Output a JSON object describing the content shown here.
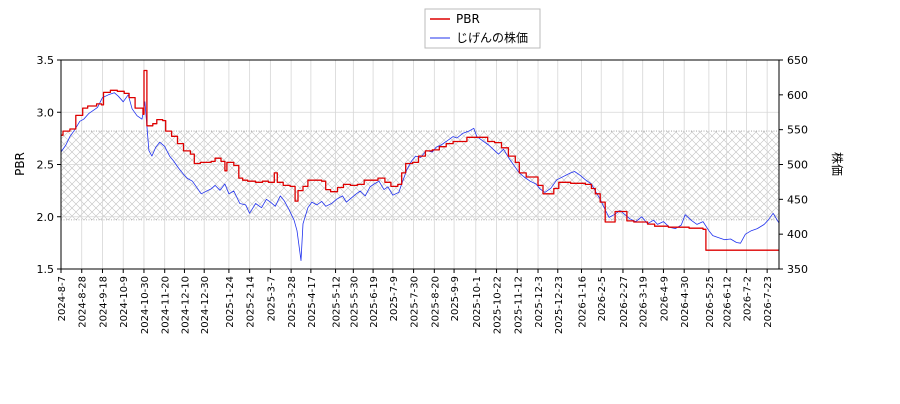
{
  "chart_data": {
    "type": "line",
    "legend_position": "top-center",
    "series": [
      {
        "name": "PBR",
        "axis": "left",
        "color": "#dd0000",
        "points": [
          [
            "2024-08-07",
            2.78
          ],
          [
            "2024-08-09",
            2.82
          ],
          [
            "2024-08-13",
            2.82
          ],
          [
            "2024-08-16",
            2.84
          ],
          [
            "2024-08-20",
            2.84
          ],
          [
            "2024-08-22",
            2.97
          ],
          [
            "2024-08-27",
            2.97
          ],
          [
            "2024-08-29",
            3.04
          ],
          [
            "2024-09-03",
            3.06
          ],
          [
            "2024-09-09",
            3.06
          ],
          [
            "2024-09-12",
            3.08
          ],
          [
            "2024-09-17",
            3.07
          ],
          [
            "2024-09-19",
            3.19
          ],
          [
            "2024-09-26",
            3.21
          ],
          [
            "2024-10-03",
            3.2
          ],
          [
            "2024-10-10",
            3.18
          ],
          [
            "2024-10-15",
            3.14
          ],
          [
            "2024-10-21",
            3.04
          ],
          [
            "2024-10-25",
            3.04
          ],
          [
            "2024-10-29",
            2.98
          ],
          [
            "2024-10-30",
            3.4
          ],
          [
            "2024-11-01",
            3.4
          ],
          [
            "2024-11-02",
            2.87
          ],
          [
            "2024-11-08",
            2.89
          ],
          [
            "2024-11-12",
            2.93
          ],
          [
            "2024-11-18",
            2.92
          ],
          [
            "2024-11-21",
            2.82
          ],
          [
            "2024-11-27",
            2.77
          ],
          [
            "2024-12-03",
            2.7
          ],
          [
            "2024-12-09",
            2.63
          ],
          [
            "2024-12-16",
            2.6
          ],
          [
            "2024-12-20",
            2.51
          ],
          [
            "2024-12-26",
            2.52
          ],
          [
            "2025-01-06",
            2.53
          ],
          [
            "2025-01-10",
            2.56
          ],
          [
            "2025-01-16",
            2.53
          ],
          [
            "2025-01-20",
            2.44
          ],
          [
            "2025-01-22",
            2.52
          ],
          [
            "2025-01-29",
            2.49
          ],
          [
            "2025-02-03",
            2.37
          ],
          [
            "2025-02-07",
            2.35
          ],
          [
            "2025-02-12",
            2.34
          ],
          [
            "2025-02-20",
            2.33
          ],
          [
            "2025-02-27",
            2.34
          ],
          [
            "2025-03-05",
            2.33
          ],
          [
            "2025-03-11",
            2.42
          ],
          [
            "2025-03-14",
            2.33
          ],
          [
            "2025-03-20",
            2.3
          ],
          [
            "2025-03-27",
            2.29
          ],
          [
            "2025-04-01",
            2.15
          ],
          [
            "2025-04-04",
            2.25
          ],
          [
            "2025-04-09",
            2.29
          ],
          [
            "2025-04-14",
            2.35
          ],
          [
            "2025-04-21",
            2.35
          ],
          [
            "2025-04-28",
            2.34
          ],
          [
            "2025-05-02",
            2.26
          ],
          [
            "2025-05-07",
            2.24
          ],
          [
            "2025-05-14",
            2.28
          ],
          [
            "2025-05-20",
            2.31
          ],
          [
            "2025-05-27",
            2.3
          ],
          [
            "2025-06-03",
            2.31
          ],
          [
            "2025-06-10",
            2.35
          ],
          [
            "2025-06-17",
            2.35
          ],
          [
            "2025-06-24",
            2.37
          ],
          [
            "2025-07-01",
            2.33
          ],
          [
            "2025-07-07",
            2.29
          ],
          [
            "2025-07-14",
            2.31
          ],
          [
            "2025-07-18",
            2.42
          ],
          [
            "2025-07-22",
            2.51
          ],
          [
            "2025-07-29",
            2.52
          ],
          [
            "2025-08-04",
            2.58
          ],
          [
            "2025-08-11",
            2.63
          ],
          [
            "2025-08-18",
            2.64
          ],
          [
            "2025-08-25",
            2.67
          ],
          [
            "2025-09-01",
            2.7
          ],
          [
            "2025-09-08",
            2.72
          ],
          [
            "2025-09-15",
            2.72
          ],
          [
            "2025-09-22",
            2.76
          ],
          [
            "2025-09-29",
            2.76
          ],
          [
            "2025-10-06",
            2.76
          ],
          [
            "2025-10-13",
            2.72
          ],
          [
            "2025-10-20",
            2.71
          ],
          [
            "2025-10-27",
            2.66
          ],
          [
            "2025-11-03",
            2.58
          ],
          [
            "2025-11-10",
            2.52
          ],
          [
            "2025-11-14",
            2.42
          ],
          [
            "2025-11-21",
            2.38
          ],
          [
            "2025-11-28",
            2.38
          ],
          [
            "2025-12-03",
            2.3
          ],
          [
            "2025-12-08",
            2.22
          ],
          [
            "2025-12-15",
            2.22
          ],
          [
            "2025-12-19",
            2.27
          ],
          [
            "2025-12-24",
            2.33
          ],
          [
            "2026-01-05",
            2.32
          ],
          [
            "2026-01-12",
            2.32
          ],
          [
            "2026-01-20",
            2.31
          ],
          [
            "2026-01-26",
            2.27
          ],
          [
            "2026-01-30",
            2.22
          ],
          [
            "2026-02-04",
            2.14
          ],
          [
            "2026-02-09",
            1.95
          ],
          [
            "2026-02-16",
            1.95
          ],
          [
            "2026-02-19",
            2.05
          ],
          [
            "2026-02-25",
            2.05
          ],
          [
            "2026-03-03",
            1.96
          ],
          [
            "2026-03-10",
            1.95
          ],
          [
            "2026-03-17",
            1.95
          ],
          [
            "2026-03-24",
            1.93
          ],
          [
            "2026-03-31",
            1.91
          ],
          [
            "2026-04-07",
            1.91
          ],
          [
            "2026-04-14",
            1.9
          ],
          [
            "2026-04-21",
            1.9
          ],
          [
            "2026-04-28",
            1.9
          ],
          [
            "2026-05-05",
            1.89
          ],
          [
            "2026-05-12",
            1.89
          ],
          [
            "2026-05-19",
            1.88
          ],
          [
            "2026-05-22",
            1.68
          ],
          [
            "2026-06-01",
            1.68
          ],
          [
            "2026-06-15",
            1.68
          ],
          [
            "2026-07-01",
            1.68
          ],
          [
            "2026-07-15",
            1.68
          ],
          [
            "2026-08-04",
            1.68
          ]
        ]
      },
      {
        "name": "じげんの株価",
        "axis": "right",
        "color": "#2233ee",
        "points": [
          [
            "2024-08-07",
            518
          ],
          [
            "2024-08-12",
            528
          ],
          [
            "2024-08-16",
            540
          ],
          [
            "2024-08-21",
            550
          ],
          [
            "2024-08-26",
            562
          ],
          [
            "2024-08-30",
            565
          ],
          [
            "2024-09-04",
            573
          ],
          [
            "2024-09-09",
            578
          ],
          [
            "2024-09-13",
            582
          ],
          [
            "2024-09-18",
            596
          ],
          [
            "2024-09-24",
            600
          ],
          [
            "2024-09-30",
            603
          ],
          [
            "2024-10-04",
            598
          ],
          [
            "2024-10-09",
            590
          ],
          [
            "2024-10-14",
            600
          ],
          [
            "2024-10-18",
            580
          ],
          [
            "2024-10-23",
            570
          ],
          [
            "2024-10-28",
            565
          ],
          [
            "2024-10-31",
            590
          ],
          [
            "2024-11-04",
            520
          ],
          [
            "2024-11-07",
            512
          ],
          [
            "2024-11-11",
            525
          ],
          [
            "2024-11-15",
            532
          ],
          [
            "2024-11-20",
            526
          ],
          [
            "2024-11-25",
            512
          ],
          [
            "2024-11-29",
            505
          ],
          [
            "2024-12-04",
            495
          ],
          [
            "2024-12-09",
            486
          ],
          [
            "2024-12-13",
            480
          ],
          [
            "2024-12-18",
            476
          ],
          [
            "2024-12-23",
            466
          ],
          [
            "2024-12-27",
            458
          ],
          [
            "2025-01-06",
            465
          ],
          [
            "2025-01-10",
            470
          ],
          [
            "2025-01-15",
            463
          ],
          [
            "2025-01-20",
            472
          ],
          [
            "2025-01-24",
            458
          ],
          [
            "2025-01-29",
            462
          ],
          [
            "2025-02-04",
            444
          ],
          [
            "2025-02-10",
            442
          ],
          [
            "2025-02-14",
            430
          ],
          [
            "2025-02-20",
            444
          ],
          [
            "2025-02-26",
            438
          ],
          [
            "2025-03-03",
            450
          ],
          [
            "2025-03-07",
            446
          ],
          [
            "2025-03-12",
            440
          ],
          [
            "2025-03-17",
            455
          ],
          [
            "2025-03-21",
            448
          ],
          [
            "2025-03-26",
            435
          ],
          [
            "2025-03-31",
            420
          ],
          [
            "2025-04-03",
            405
          ],
          [
            "2025-04-07",
            362
          ],
          [
            "2025-04-09",
            415
          ],
          [
            "2025-04-14",
            438
          ],
          [
            "2025-04-18",
            446
          ],
          [
            "2025-04-23",
            442
          ],
          [
            "2025-04-28",
            447
          ],
          [
            "2025-05-02",
            440
          ],
          [
            "2025-05-08",
            444
          ],
          [
            "2025-05-13",
            450
          ],
          [
            "2025-05-19",
            455
          ],
          [
            "2025-05-23",
            446
          ],
          [
            "2025-05-28",
            452
          ],
          [
            "2025-06-02",
            458
          ],
          [
            "2025-06-06",
            462
          ],
          [
            "2025-06-11",
            455
          ],
          [
            "2025-06-16",
            468
          ],
          [
            "2025-06-20",
            472
          ],
          [
            "2025-06-25",
            476
          ],
          [
            "2025-06-30",
            464
          ],
          [
            "2025-07-04",
            468
          ],
          [
            "2025-07-09",
            456
          ],
          [
            "2025-07-15",
            460
          ],
          [
            "2025-07-18",
            472
          ],
          [
            "2025-07-23",
            492
          ],
          [
            "2025-07-28",
            505
          ],
          [
            "2025-08-01",
            512
          ],
          [
            "2025-08-06",
            510
          ],
          [
            "2025-08-12",
            520
          ],
          [
            "2025-08-18",
            518
          ],
          [
            "2025-08-22",
            525
          ],
          [
            "2025-08-27",
            528
          ],
          [
            "2025-09-02",
            534
          ],
          [
            "2025-09-08",
            540
          ],
          [
            "2025-09-12",
            538
          ],
          [
            "2025-09-18",
            545
          ],
          [
            "2025-09-24",
            548
          ],
          [
            "2025-09-29",
            552
          ],
          [
            "2025-10-02",
            540
          ],
          [
            "2025-10-07",
            535
          ],
          [
            "2025-10-14",
            528
          ],
          [
            "2025-10-20",
            520
          ],
          [
            "2025-10-24",
            515
          ],
          [
            "2025-10-29",
            522
          ],
          [
            "2025-11-04",
            508
          ],
          [
            "2025-11-10",
            496
          ],
          [
            "2025-11-14",
            488
          ],
          [
            "2025-11-19",
            482
          ],
          [
            "2025-11-25",
            476
          ],
          [
            "2025-12-01",
            472
          ],
          [
            "2025-12-05",
            465
          ],
          [
            "2025-12-10",
            460
          ],
          [
            "2025-12-16",
            466
          ],
          [
            "2025-12-22",
            478
          ],
          [
            "2026-01-05",
            488
          ],
          [
            "2026-01-09",
            490
          ],
          [
            "2026-01-15",
            484
          ],
          [
            "2026-01-20",
            478
          ],
          [
            "2026-01-26",
            472
          ],
          [
            "2026-01-30",
            462
          ],
          [
            "2026-02-04",
            450
          ],
          [
            "2026-02-09",
            435
          ],
          [
            "2026-02-13",
            424
          ],
          [
            "2026-02-18",
            428
          ],
          [
            "2026-02-24",
            434
          ],
          [
            "2026-03-02",
            427
          ],
          [
            "2026-03-06",
            422
          ],
          [
            "2026-03-12",
            418
          ],
          [
            "2026-03-18",
            425
          ],
          [
            "2026-03-24",
            415
          ],
          [
            "2026-03-30",
            420
          ],
          [
            "2026-04-03",
            414
          ],
          [
            "2026-04-09",
            418
          ],
          [
            "2026-04-15",
            410
          ],
          [
            "2026-04-21",
            408
          ],
          [
            "2026-04-27",
            413
          ],
          [
            "2026-05-01",
            428
          ],
          [
            "2026-05-07",
            420
          ],
          [
            "2026-05-13",
            414
          ],
          [
            "2026-05-19",
            418
          ],
          [
            "2026-05-25",
            405
          ],
          [
            "2026-05-29",
            398
          ],
          [
            "2026-06-04",
            395
          ],
          [
            "2026-06-10",
            392
          ],
          [
            "2026-06-16",
            393
          ],
          [
            "2026-06-22",
            388
          ],
          [
            "2026-06-26",
            387
          ],
          [
            "2026-07-01",
            400
          ],
          [
            "2026-07-07",
            405
          ],
          [
            "2026-07-13",
            408
          ],
          [
            "2026-07-20",
            414
          ],
          [
            "2026-07-24",
            420
          ],
          [
            "2026-07-29",
            430
          ],
          [
            "2026-08-04",
            416
          ]
        ]
      }
    ],
    "y_left": {
      "label": "PBR",
      "range": [
        1.5,
        3.5
      ],
      "ticks": [
        "1.5",
        "2.0",
        "2.5",
        "3.0",
        "3.5"
      ]
    },
    "y_right": {
      "label": "株価",
      "range": [
        350,
        650
      ],
      "ticks": [
        "350",
        "400",
        "450",
        "500",
        "550",
        "600",
        "650"
      ]
    },
    "x_range": [
      "2024-08-07",
      "2026-08-04"
    ],
    "x_ticks": [
      "2024-8-7",
      "2024-8-28",
      "2024-9-18",
      "2024-10-9",
      "2024-10-30",
      "2024-11-20",
      "2024-12-10",
      "2024-12-30",
      "2025-1-24",
      "2025-2-14",
      "2025-3-7",
      "2025-3-28",
      "2025-4-17",
      "2025-5-12",
      "2025-5-30",
      "2025-6-19",
      "2025-7-9",
      "2025-7-30",
      "2025-8-20",
      "2025-9-9",
      "2025-10-1",
      "2025-10-22",
      "2025-11-12",
      "2025-12-3",
      "2025-12-23",
      "2026-1-16",
      "2026-2-5",
      "2026-2-27",
      "2026-3-19",
      "2026-4-9",
      "2026-4-30",
      "2026-5-25",
      "2026-6-12",
      "2026-7-2",
      "2026-7-23"
    ],
    "hatched_band_pbr": [
      1.97,
      2.82
    ],
    "grid": true
  }
}
